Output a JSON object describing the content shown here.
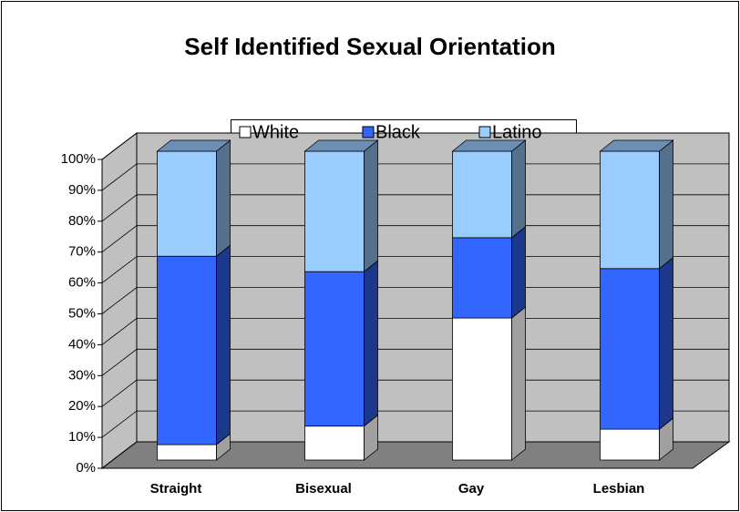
{
  "chart_data": {
    "type": "bar3d_stacked",
    "title": "Self Identified Sexual Orientation",
    "categories": [
      "Straight",
      "Bisexual",
      "Gay",
      "Lesbian"
    ],
    "series": [
      {
        "name": "White",
        "color": "#ffffff",
        "values": [
          5,
          11,
          46,
          10
        ]
      },
      {
        "name": "Black",
        "color": "#3366ff",
        "values": [
          61,
          50,
          26,
          52
        ]
      },
      {
        "name": "Latino",
        "color": "#99ccff",
        "values": [
          34,
          39,
          28,
          38
        ]
      }
    ],
    "ylim": [
      0,
      100
    ],
    "yticks": [
      {
        "value": 0,
        "label": "0%"
      },
      {
        "value": 10,
        "label": "10%"
      },
      {
        "value": 20,
        "label": "20%"
      },
      {
        "value": 30,
        "label": "30%"
      },
      {
        "value": 40,
        "label": "40%"
      },
      {
        "value": 50,
        "label": "50%"
      },
      {
        "value": 60,
        "label": "60%"
      },
      {
        "value": 70,
        "label": "70%"
      },
      {
        "value": 80,
        "label": "80%"
      },
      {
        "value": 90,
        "label": "90%"
      },
      {
        "value": 100,
        "label": "100%"
      }
    ],
    "grid": true,
    "legend": "top"
  }
}
